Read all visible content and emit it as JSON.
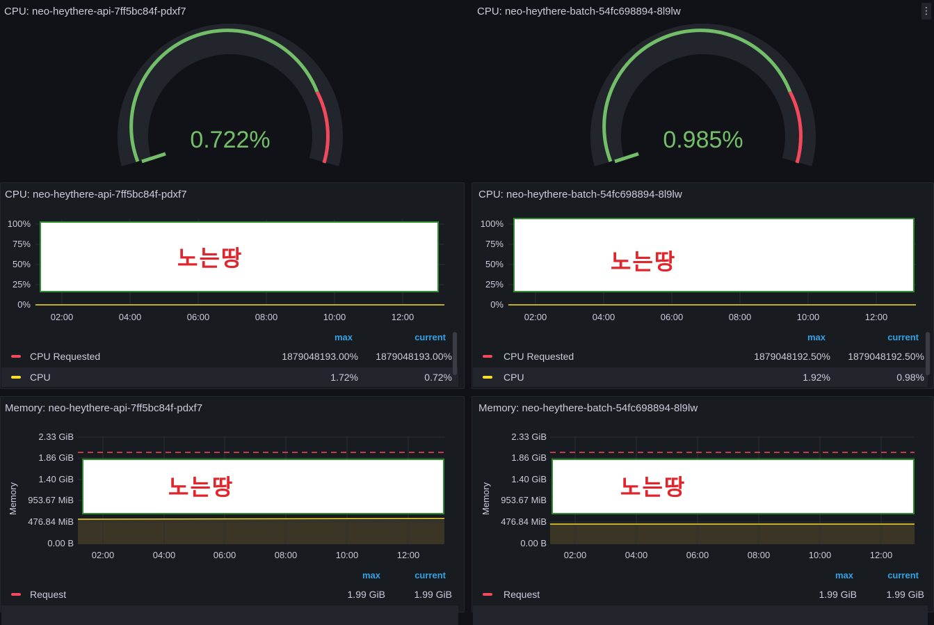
{
  "gauges": [
    {
      "title": "CPU: neo-heythere-api-7ff5bc84f-pdxf7",
      "value": "0.722%"
    },
    {
      "title": "CPU: neo-heythere-batch-54fc698894-8l9lw",
      "value": "0.985%"
    }
  ],
  "cpu_panels": [
    {
      "title": "CPU: neo-heythere-api-7ff5bc84f-pdxf7",
      "yticks": [
        "100%",
        "75%",
        "50%",
        "25%",
        "0%"
      ],
      "xticks": [
        "02:00",
        "04:00",
        "06:00",
        "08:00",
        "10:00",
        "12:00"
      ],
      "overlay_text": "노는땅",
      "legend": {
        "headers": [
          "max",
          "current"
        ],
        "rows": [
          {
            "name": "CPU Requested",
            "max": "1879048193.00%",
            "current": "1879048193.00%",
            "color": "#f2495c"
          },
          {
            "name": "CPU",
            "max": "1.72%",
            "current": "0.72%",
            "color": "#fade2a"
          }
        ]
      }
    },
    {
      "title": "CPU: neo-heythere-batch-54fc698894-8l9lw",
      "yticks": [
        "100%",
        "75%",
        "50%",
        "25%",
        "0%"
      ],
      "xticks": [
        "02:00",
        "04:00",
        "06:00",
        "08:00",
        "10:00",
        "12:00"
      ],
      "overlay_text": "노는땅",
      "legend": {
        "headers": [
          "max",
          "current"
        ],
        "rows": [
          {
            "name": "CPU Requested",
            "max": "1879048192.50%",
            "current": "1879048192.50%",
            "color": "#f2495c"
          },
          {
            "name": "CPU",
            "max": "1.92%",
            "current": "0.98%",
            "color": "#fade2a"
          }
        ]
      }
    }
  ],
  "mem_panels": [
    {
      "title": "Memory: neo-heythere-api-7ff5bc84f-pdxf7",
      "ylabel": "Memory",
      "yticks": [
        "2.33 GiB",
        "1.86 GiB",
        "1.40 GiB",
        "953.67 MiB",
        "476.84 MiB",
        "0.00 B"
      ],
      "xticks": [
        "02:00",
        "04:00",
        "06:00",
        "08:00",
        "10:00",
        "12:00"
      ],
      "overlay_text": "노는땅",
      "legend": {
        "headers": [
          "max",
          "current"
        ],
        "rows": [
          {
            "name": "Request",
            "max": "1.99 GiB",
            "current": "1.99 GiB",
            "color": "#f2495c"
          }
        ]
      }
    },
    {
      "title": "Memory: neo-heythere-batch-54fc698894-8l9lw",
      "ylabel": "Memory",
      "yticks": [
        "2.33 GiB",
        "1.86 GiB",
        "1.40 GiB",
        "953.67 MiB",
        "476.84 MiB",
        "0.00 B"
      ],
      "xticks": [
        "02:00",
        "04:00",
        "06:00",
        "08:00",
        "10:00",
        "12:00"
      ],
      "overlay_text": "노는땅",
      "legend": {
        "headers": [
          "max",
          "current"
        ],
        "rows": [
          {
            "name": "Request",
            "max": "1.99 GiB",
            "current": "1.99 GiB",
            "color": "#f2495c"
          }
        ]
      }
    }
  ],
  "colors": {
    "gauge_ok": "#73bf69",
    "gauge_bad": "#f2495c",
    "cpu_line": "#fade2a",
    "request_line": "#f2495c"
  }
}
